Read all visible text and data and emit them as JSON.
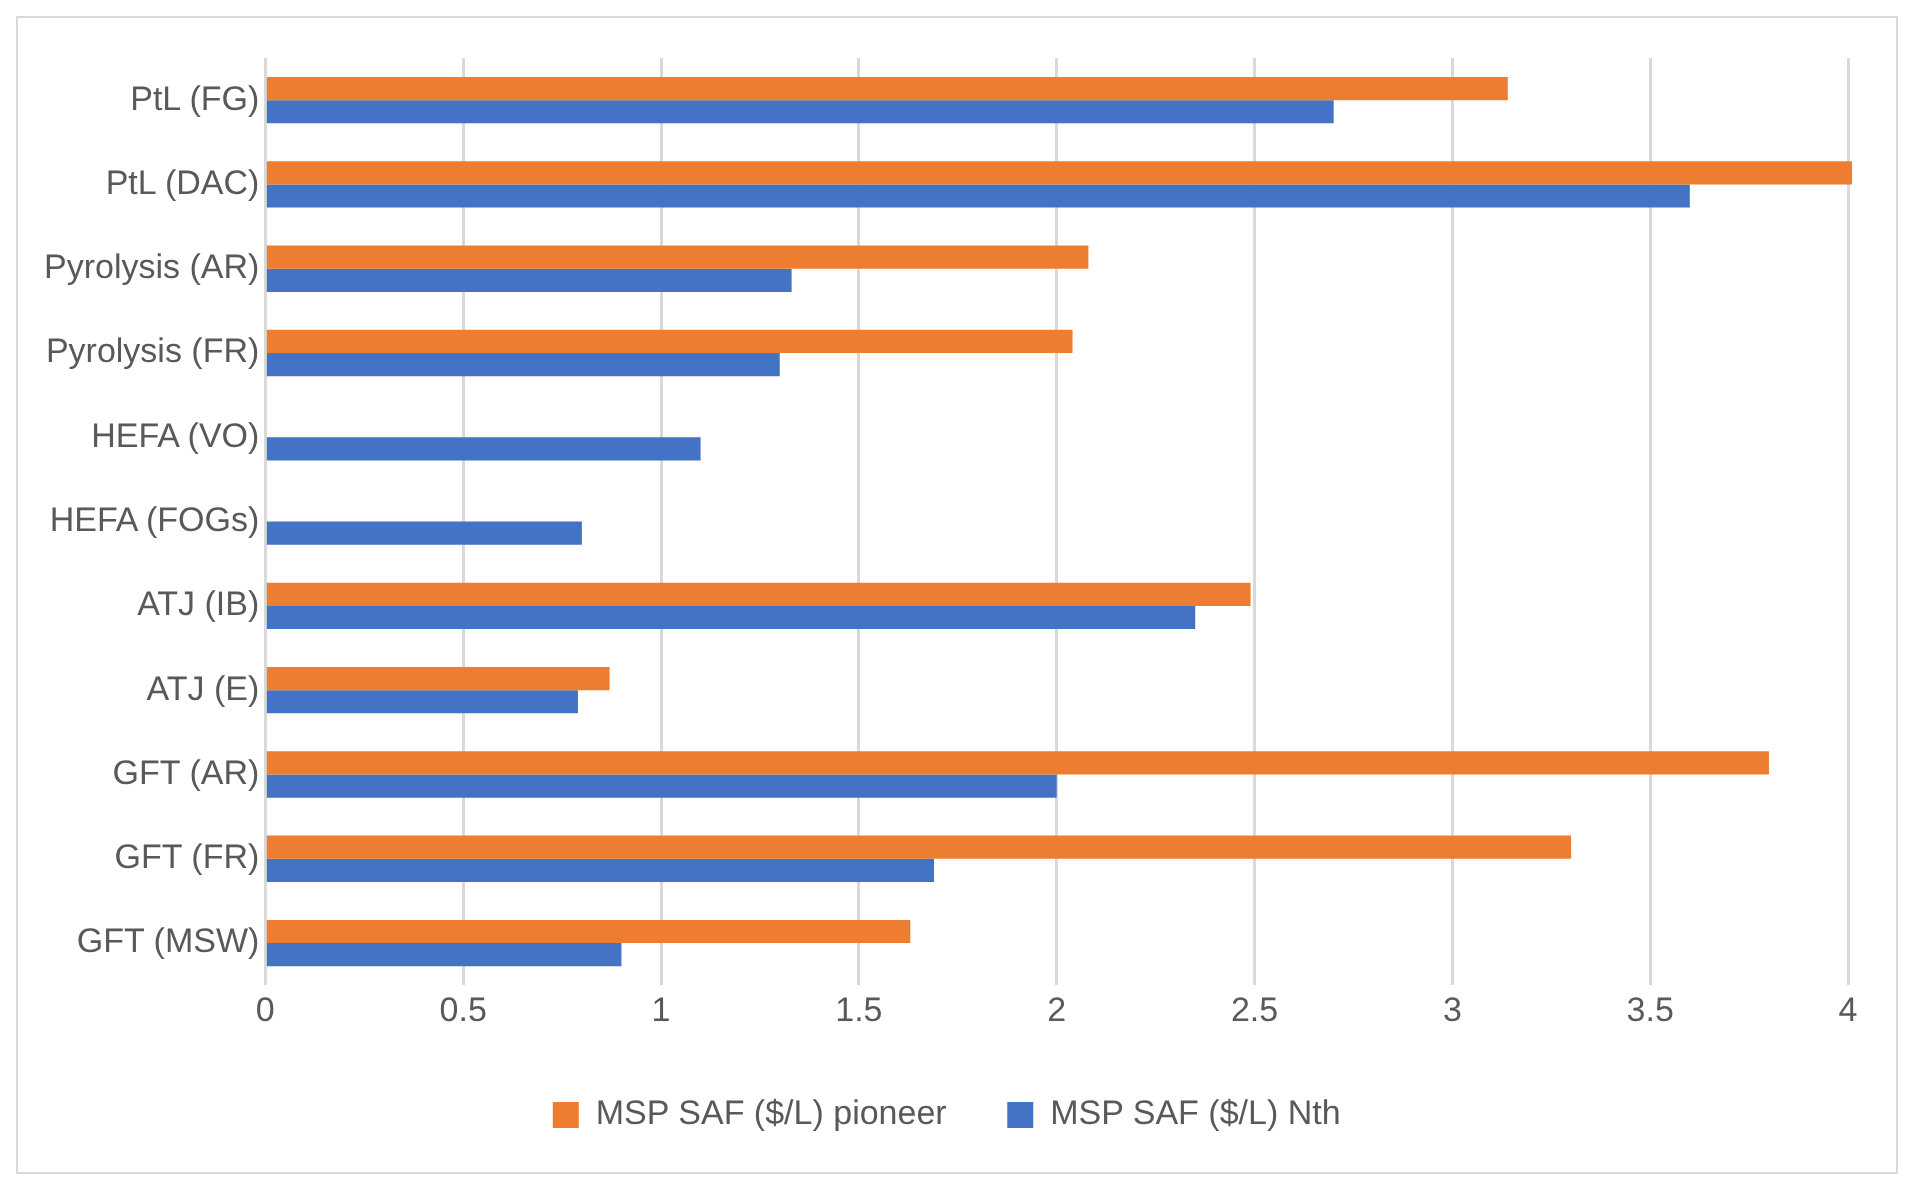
{
  "chart_data": {
    "type": "bar",
    "orientation": "horizontal",
    "categories": [
      "PtL (FG)",
      "PtL (DAC)",
      "Pyrolysis (AR)",
      "Pyrolysis (FR)",
      "HEFA (VO)",
      "HEFA (FOGs)",
      "ATJ (IB)",
      "ATJ (E)",
      "GFT (AR)",
      "GFT (FR)",
      "GFT (MSW)"
    ],
    "series": [
      {
        "name": "MSP SAF ($/L) pioneer",
        "color": "#ed7d31",
        "values": [
          3.14,
          4.01,
          2.08,
          2.04,
          null,
          null,
          2.49,
          0.87,
          3.8,
          3.3,
          1.63
        ]
      },
      {
        "name": "MSP SAF ($/L) Nth",
        "color": "#4472c4",
        "values": [
          2.7,
          3.6,
          1.33,
          1.3,
          1.1,
          0.8,
          2.35,
          0.79,
          2.0,
          1.69,
          0.9
        ]
      }
    ],
    "xlim": [
      0,
      4.02
    ],
    "xticks": [
      0,
      0.5,
      1,
      1.5,
      2,
      2.5,
      3,
      3.5,
      4
    ],
    "grid": "x",
    "legend": "bottom"
  }
}
